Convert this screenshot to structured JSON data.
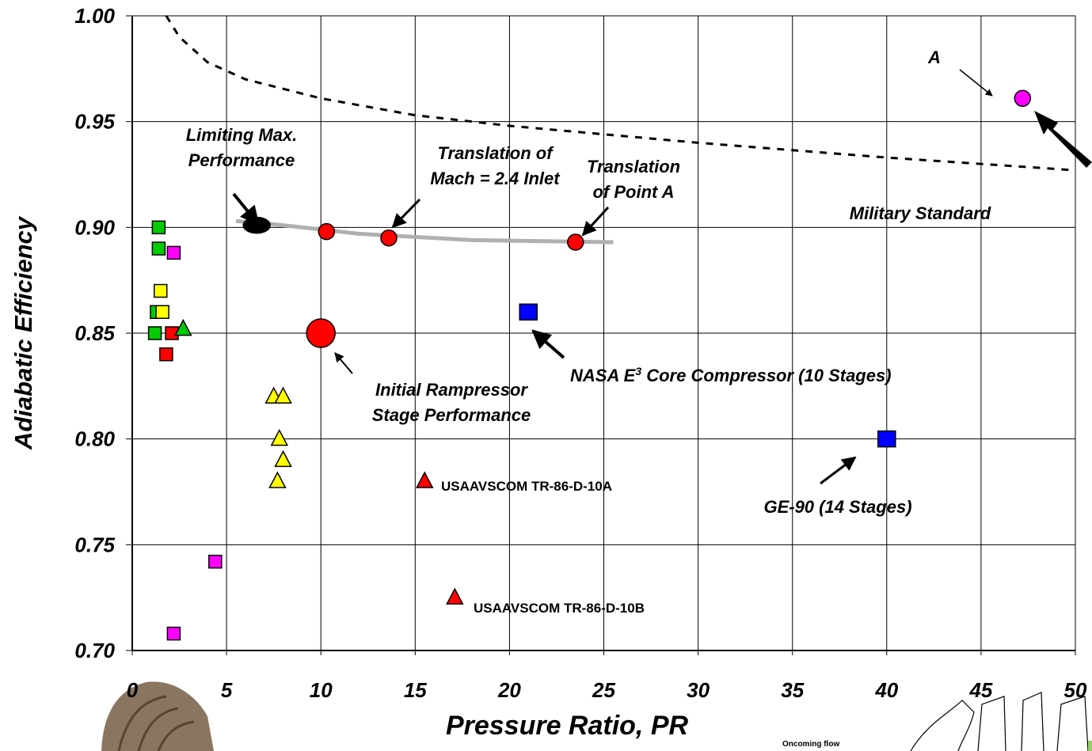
{
  "chart_data": {
    "type": "scatter",
    "x_label": "Pressure Ratio, PR",
    "y_label": "Adiabatic Efficiency",
    "xlim": [
      0,
      50
    ],
    "ylim": [
      0.7,
      1.0
    ],
    "xticks": [
      0,
      5,
      10,
      15,
      20,
      25,
      30,
      35,
      40,
      45,
      50
    ],
    "yticks": [
      {
        "value": 0.7,
        "label": "0.70"
      },
      0.75,
      {
        "value": 0.8,
        "label": "0.80"
      },
      0.85,
      {
        "value": 0.9,
        "label": "0.90"
      },
      0.95,
      {
        "value": 1.0,
        "label": "1.00"
      }
    ],
    "grid": true,
    "series": [
      {
        "marker": "square",
        "color": "#00cc00",
        "x": [
          1.4,
          1.4,
          1.3,
          1.2
        ],
        "y": [
          0.9,
          0.89,
          0.86,
          0.85
        ]
      },
      {
        "marker": "square",
        "color": "#ff00ff",
        "x": [
          2.2,
          4.4,
          2.2
        ],
        "y": [
          0.888,
          0.742,
          0.708
        ]
      },
      {
        "marker": "square",
        "color": "#ffff00",
        "x": [
          1.5,
          1.6
        ],
        "y": [
          0.87,
          0.86
        ]
      },
      {
        "marker": "square",
        "color": "#ff0000",
        "x": [
          2.1,
          1.8
        ],
        "y": [
          0.85,
          0.84
        ]
      },
      {
        "marker": "triangle",
        "color": "#00cc00",
        "x": [
          2.7
        ],
        "y": [
          0.852
        ]
      },
      {
        "marker": "triangle",
        "color": "#ffff00",
        "x": [
          7.5,
          8.0,
          7.8,
          8.0,
          7.7
        ],
        "y": [
          0.82,
          0.82,
          0.8,
          0.79,
          0.78
        ]
      },
      {
        "marker": "triangle",
        "color": "#ff0000",
        "x": [
          15.5,
          17.1
        ],
        "y": [
          0.78,
          0.725
        ]
      },
      {
        "marker": "circle",
        "color": "#ff0000",
        "x": [
          10.3,
          13.6,
          23.5
        ],
        "y": [
          0.898,
          0.895,
          0.893
        ]
      },
      {
        "marker": "circle-large",
        "color": "#ff0000",
        "x": [
          10.0
        ],
        "y": [
          0.85
        ]
      },
      {
        "marker": "circle",
        "color": "#ff00ff",
        "x": [
          47.2
        ],
        "y": [
          0.961
        ]
      },
      {
        "marker": "square",
        "color": "#0000ff",
        "x": [
          21.0,
          40.0
        ],
        "y": [
          0.86,
          0.8
        ]
      },
      {
        "marker": "ellipse",
        "color": "#000000",
        "x": [
          6.6
        ],
        "y": [
          0.901
        ]
      }
    ],
    "lines": [
      {
        "style": "dashed",
        "color": "#000000",
        "x": [
          1.8,
          2.5,
          4,
          6,
          10,
          15,
          20,
          30,
          40,
          50
        ],
        "y": [
          1.0,
          0.99,
          0.978,
          0.97,
          0.961,
          0.953,
          0.948,
          0.94,
          0.933,
          0.927
        ]
      },
      {
        "style": "solid",
        "color": "#b0b0b0",
        "x": [
          5.5,
          8,
          12,
          18,
          25.5
        ],
        "y": [
          0.903,
          0.901,
          0.897,
          0.894,
          0.893
        ]
      }
    ],
    "annotations": [
      {
        "lines": [
          "A"
        ]
      },
      {
        "lines": [
          "Limiting Max.",
          "Performance"
        ]
      },
      {
        "lines": [
          "Translation of",
          "Mach = 2.4  Inlet"
        ]
      },
      {
        "lines": [
          "Translation",
          "of Point A"
        ]
      },
      {
        "lines": [
          "Military Standard"
        ]
      },
      {
        "lines": [
          "Initial Rampressor",
          "Stage Performance"
        ]
      },
      {
        "lines": [
          "NASA E",
          "3",
          " Core Compressor (10 Stages)"
        ]
      },
      {
        "lines": [
          "GE-90 (14 Stages)"
        ]
      },
      {
        "lines": [
          "USAAVSCOM TR-86-D-10A"
        ]
      },
      {
        "lines": [
          "USAAVSCOM TR-86-D-10B"
        ]
      },
      {
        "lines": [
          "Oncoming flow"
        ]
      }
    ]
  }
}
